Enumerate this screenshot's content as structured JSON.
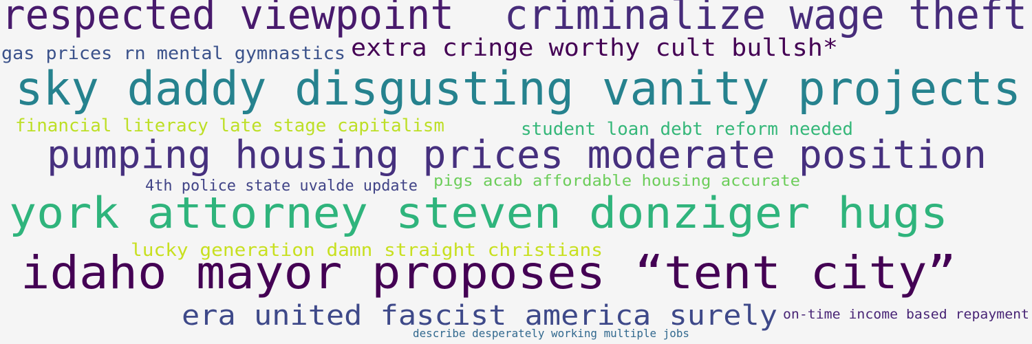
{
  "phrases": [
    {
      "text": "respected viewpoint",
      "color": "#481a6c"
    },
    {
      "text": "criminalize wage theft",
      "color": "#472c7a"
    },
    {
      "text": "gas prices rn mental gymnastics",
      "color": "#3b528b"
    },
    {
      "text": "extra cringe worthy cult bullsh*",
      "color": "#440154"
    },
    {
      "text": "sky daddy disgusting vanity projects",
      "color": "#26828e"
    },
    {
      "text": "financial literacy late stage capitalism",
      "color": "#bddf26"
    },
    {
      "text": "student loan debt reform needed",
      "color": "#35b779"
    },
    {
      "text": "pumping housing prices moderate position",
      "color": "#46307e"
    },
    {
      "text": "4th police state uvalde update",
      "color": "#414487"
    },
    {
      "text": "pigs acab affordable housing accurate",
      "color": "#6ccd5a"
    },
    {
      "text": "york attorney steven donziger hugs",
      "color": "#2fb47c"
    },
    {
      "text": "lucky generation damn straight christians",
      "color": "#c8e020"
    },
    {
      "text": "idaho mayor proposes “tent city”",
      "color": "#440154"
    },
    {
      "text": "era united fascist america surely",
      "color": "#3e4989"
    },
    {
      "text": "on-time income based repayment",
      "color": "#482475"
    },
    {
      "text": "describe desperately working multiple jobs",
      "color": "#31688e"
    }
  ]
}
